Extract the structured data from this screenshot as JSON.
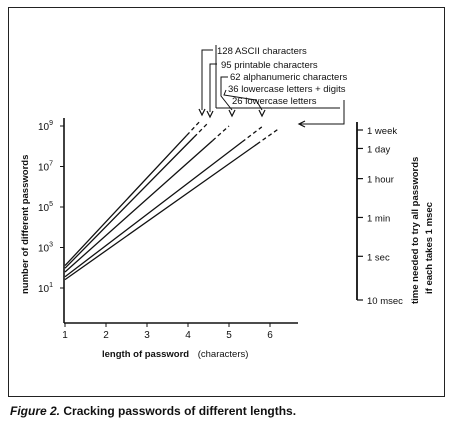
{
  "caption": {
    "figure_number": "Figure 2.",
    "text": "Cracking passwords of different lengths."
  },
  "chart_data": {
    "type": "line",
    "title": "",
    "xlabel": "length of password",
    "xlabel_unit": "(characters)",
    "ylabel": "number of different passwords",
    "y2label_line1": "time needed to try all passwords",
    "y2label_line2": "if each takes 1 msec",
    "x_ticks": [
      "1",
      "2",
      "3",
      "4",
      "5",
      "6"
    ],
    "y_tick_labels": [
      {
        "base": "10",
        "exp": "1",
        "value": 10
      },
      {
        "base": "10",
        "exp": "3",
        "value": 1000
      },
      {
        "base": "10",
        "exp": "5",
        "value": 100000
      },
      {
        "base": "10",
        "exp": "7",
        "value": 10000000
      },
      {
        "base": "10",
        "exp": "9",
        "value": 1000000000
      }
    ],
    "y_scale": "log",
    "xlim": [
      1,
      6.2
    ],
    "ylim": [
      10,
      1000000000
    ],
    "grid": false,
    "series": [
      {
        "name": "128 ASCII characters",
        "charset": 128,
        "x": [
          1,
          4.3
        ],
        "y": [
          128,
          1800000000
        ]
      },
      {
        "name": "95 printable characters",
        "charset": 95,
        "x": [
          1,
          4.5
        ],
        "y": [
          95,
          1500000000
        ]
      },
      {
        "name": "62 alphanumeric characters",
        "charset": 62,
        "x": [
          1,
          5.0
        ],
        "y": [
          62,
          1000000000
        ]
      },
      {
        "name": "36 lowercase letters + digits",
        "charset": 36,
        "x": [
          1,
          5.8
        ],
        "y": [
          36,
          900000000
        ]
      },
      {
        "name": "26 lowercase letters",
        "charset": 26,
        "x": [
          1,
          6.2
        ],
        "y": [
          26,
          700000000
        ]
      }
    ],
    "time_scale": [
      {
        "label": "1 week",
        "seconds": 604800
      },
      {
        "label": "1 day",
        "seconds": 86400
      },
      {
        "label": "1 hour",
        "seconds": 3600
      },
      {
        "label": "1 min",
        "seconds": 60
      },
      {
        "label": "1 sec",
        "seconds": 1
      },
      {
        "label": "10 msec",
        "seconds": 0.01
      }
    ]
  }
}
